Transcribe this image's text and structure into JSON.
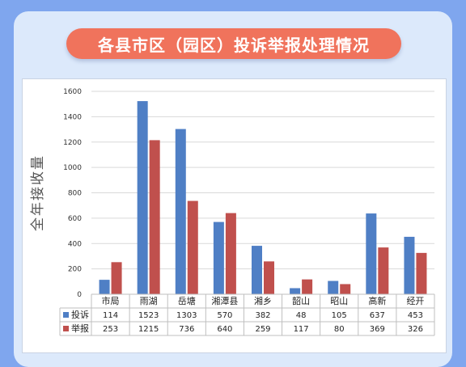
{
  "title": "各县市区（园区）投诉举报处理情况",
  "chart_data": {
    "type": "bar",
    "ylabel": "全年接收量",
    "ylim": [
      0,
      1600
    ],
    "yticks": [
      0,
      200,
      400,
      600,
      800,
      1000,
      1200,
      1400,
      1600
    ],
    "grid": true,
    "categories": [
      "市局",
      "雨湖",
      "岳塘",
      "湘潭县",
      "湘乡",
      "韶山",
      "昭山",
      "高新",
      "经开"
    ],
    "series": [
      {
        "name": "投诉",
        "color": "#4f7fc5",
        "values": [
          114,
          1523,
          1303,
          570,
          382,
          48,
          105,
          637,
          453
        ]
      },
      {
        "name": "举报",
        "color": "#c0504d",
        "values": [
          253,
          1215,
          736,
          640,
          259,
          117,
          80,
          369,
          326
        ]
      }
    ],
    "legend": "data-table"
  }
}
